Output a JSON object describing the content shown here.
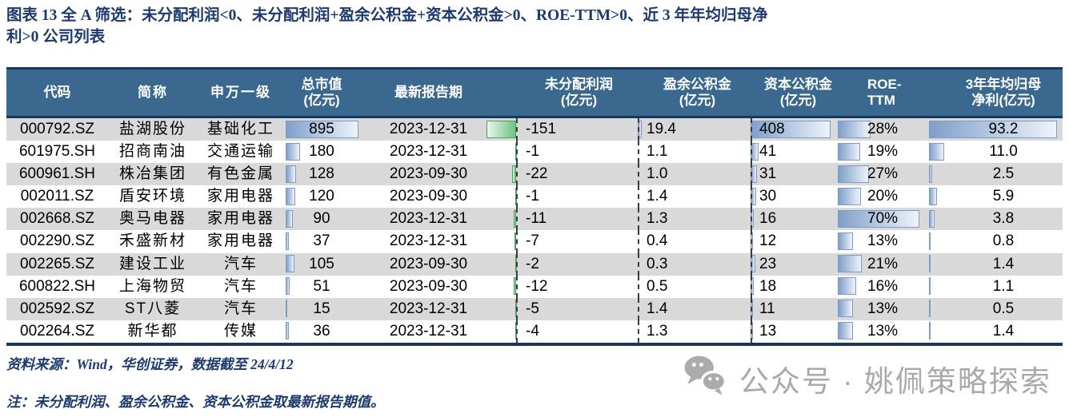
{
  "title": "图表 13  全 A 筛选：未分配利润<0、未分配利润+盈余公积金+资本公积金>0、ROE-TTM>0、近 3 年年均归母净利>0 公司列表",
  "title_line1": "图表 13  全 A 筛选：未分配利润<0、未分配利润+盈余公积金+资本公积金>0、ROE-TTM>0、近 3 年年均归母净",
  "title_line2": "利>0 公司列表",
  "chart_data": {
    "type": "table",
    "title": "全A筛选：未分配利润<0、未分配利润+盈余公积金+资本公积金>0、ROE-TTM>0、近3年年均归母净利>0 公司列表",
    "columns": [
      {
        "key": "code",
        "label": "代码"
      },
      {
        "key": "name",
        "label": "简称"
      },
      {
        "key": "ind",
        "label": "申万一级"
      },
      {
        "key": "mktcap",
        "label": "总市值",
        "sublabel": "(亿元)"
      },
      {
        "key": "report",
        "label": "最新报告期"
      },
      {
        "key": "retained",
        "label": "未分配利润",
        "sublabel": "(亿元)"
      },
      {
        "key": "surplus",
        "label": "盈余公积金",
        "sublabel": "(亿元)"
      },
      {
        "key": "capital",
        "label": "资本公积金",
        "sublabel": "(亿元)"
      },
      {
        "key": "roe",
        "label": "ROE-TTM"
      },
      {
        "key": "profit",
        "label": "3年年均归母",
        "sublabel": "净利(亿元)"
      }
    ],
    "rows": [
      {
        "code": "000792.SZ",
        "name": "盐湖股份",
        "ind": "基础化工",
        "mktcap": "895",
        "report": "2023-12-31",
        "retained": "-151",
        "surplus": "19.4",
        "capital": "408",
        "roe": "28%",
        "profit": "93.2"
      },
      {
        "code": "601975.SH",
        "name": "招商南油",
        "ind": "交通运输",
        "mktcap": "180",
        "report": "2023-12-31",
        "retained": "-1",
        "surplus": "1.1",
        "capital": "41",
        "roe": "19%",
        "profit": "11.0"
      },
      {
        "code": "600961.SH",
        "name": "株冶集团",
        "ind": "有色金属",
        "mktcap": "128",
        "report": "2023-09-30",
        "retained": "-22",
        "surplus": "1.0",
        "capital": "31",
        "roe": "27%",
        "profit": "2.5"
      },
      {
        "code": "002011.SZ",
        "name": "盾安环境",
        "ind": "家用电器",
        "mktcap": "120",
        "report": "2023-09-30",
        "retained": "-1",
        "surplus": "1.4",
        "capital": "30",
        "roe": "20%",
        "profit": "5.9"
      },
      {
        "code": "002668.SZ",
        "name": "奥马电器",
        "ind": "家用电器",
        "mktcap": "90",
        "report": "2023-12-31",
        "retained": "-11",
        "surplus": "1.3",
        "capital": "16",
        "roe": "70%",
        "profit": "3.8"
      },
      {
        "code": "002290.SZ",
        "name": "禾盛新材",
        "ind": "家用电器",
        "mktcap": "37",
        "report": "2023-12-31",
        "retained": "-7",
        "surplus": "0.4",
        "capital": "12",
        "roe": "13%",
        "profit": "0.8"
      },
      {
        "code": "002265.SZ",
        "name": "建设工业",
        "ind": "汽车",
        "mktcap": "105",
        "report": "2023-09-30",
        "retained": "-2",
        "surplus": "0.3",
        "capital": "23",
        "roe": "21%",
        "profit": "1.4"
      },
      {
        "code": "600822.SH",
        "name": "上海物贸",
        "ind": "汽车",
        "mktcap": "51",
        "report": "2023-09-30",
        "retained": "-12",
        "surplus": "0.5",
        "capital": "18",
        "roe": "16%",
        "profit": "1.1"
      },
      {
        "code": "002592.SZ",
        "name": "ST八菱",
        "ind": "汽车",
        "mktcap": "15",
        "report": "2023-12-31",
        "retained": "-5",
        "surplus": "1.4",
        "capital": "11",
        "roe": "13%",
        "profit": "0.5"
      },
      {
        "code": "002264.SZ",
        "name": "新华都",
        "ind": "传媒",
        "mktcap": "36",
        "report": "2023-12-31",
        "retained": "-4",
        "surplus": "1.3",
        "capital": "13",
        "roe": "13%",
        "profit": "1.4"
      }
    ],
    "layout_hints": {
      "striped": true,
      "data_bars": [
        "mktcap",
        "retained",
        "surplus",
        "capital",
        "roe",
        "profit"
      ]
    }
  },
  "footer": {
    "source": "资料来源：Wind，华创证券，数据截至 24/4/12",
    "note": "注：未分配利润、盈余公积金、资本公积金取最新报告期值。"
  },
  "watermark": {
    "icon": "wechat-icon",
    "label": "公众号 · 姚佩策略探索"
  },
  "colors": {
    "title_text": "#1c3a6e",
    "header_bg": "#3a688e",
    "header_text": "#ffffff",
    "table_border": "#17375e",
    "row_stripe": "#d9d9d9",
    "bar_blue": "#7f9fca",
    "bar_blue_border": "#7e9bc4",
    "bar_green": "#6cc383",
    "bar_green_border": "#48a05e",
    "watermark_gray": "#a9a9a9"
  }
}
